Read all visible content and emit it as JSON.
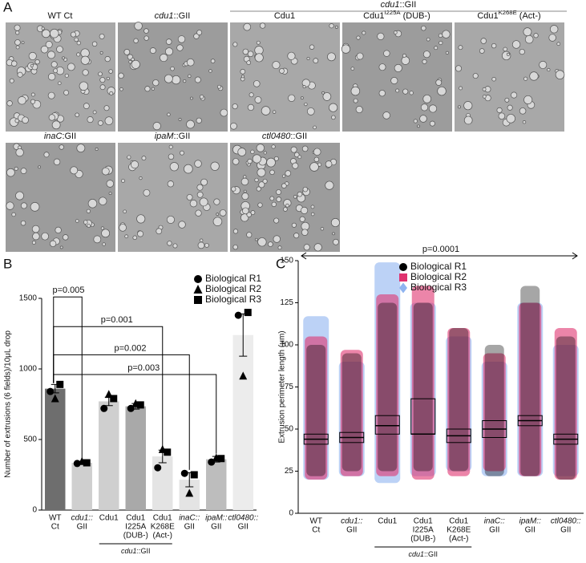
{
  "panel_a": {
    "letter": "A",
    "group_label": [
      {
        "text": "cdu1",
        "italic": true
      },
      {
        "text": "::GII"
      }
    ],
    "labels": [
      [
        {
          "text": "WT Ct"
        }
      ],
      [
        {
          "text": "cdu1",
          "italic": true
        },
        {
          "text": "::GII"
        }
      ],
      [
        {
          "text": "Cdu1"
        }
      ],
      [
        {
          "text": "Cdu1"
        },
        {
          "text": "I225A",
          "sup": true
        },
        {
          "text": " (DUB-)"
        }
      ],
      [
        {
          "text": "Cdu1"
        },
        {
          "text": "K268E",
          "sup": true
        },
        {
          "text": " (Act-)"
        }
      ],
      [
        {
          "text": "inaC",
          "italic": true
        },
        {
          "text": ":GII"
        }
      ],
      [
        {
          "text": "ipaM",
          "italic": true
        },
        {
          "text": "::GII"
        }
      ],
      [
        {
          "text": "ctl0480",
          "italic": true
        },
        {
          "text": "::GII"
        }
      ]
    ]
  },
  "chart_data": [
    {
      "type": "bar",
      "panel": "B",
      "ylabel": "Number of extrusions (6 fields)/10μL drop",
      "categories": [
        [
          "WT",
          "Ct"
        ],
        [
          "cdu1::",
          "GII"
        ],
        [
          "Cdu1"
        ],
        [
          "Cdu1",
          "I225A",
          "(DUB-)"
        ],
        [
          "Cdu1",
          "K268E",
          "(Act-)"
        ],
        [
          "inaC::",
          "GII"
        ],
        [
          "ipaM::",
          "GII"
        ],
        [
          "ctl0480::",
          "GII"
        ]
      ],
      "values": [
        860,
        335,
        770,
        735,
        380,
        215,
        360,
        1240
      ],
      "errors": [
        30,
        10,
        30,
        20,
        45,
        50,
        20,
        150
      ],
      "colors": [
        "#6e6e6e",
        "#cfcfcf",
        "#cfcfcf",
        "#a9a9a9",
        "#e4e4e4",
        "#e4e4e4",
        "#bdbdbd",
        "#ececec"
      ],
      "series": [
        {
          "name": "Biological R1",
          "marker": "circle",
          "color": "#000000",
          "values": [
            840,
            330,
            720,
            720,
            300,
            260,
            340,
            1380
          ]
        },
        {
          "name": "Biological R2",
          "marker": "triangle",
          "color": "#000000",
          "values": [
            790,
            345,
            820,
            755,
            430,
            120,
            370,
            950
          ]
        },
        {
          "name": "Biological R3",
          "marker": "square",
          "color": "#000000",
          "values": [
            890,
            335,
            790,
            745,
            410,
            250,
            365,
            1400
          ]
        }
      ],
      "ylim": [
        0,
        1500
      ],
      "yticks": [
        0,
        500,
        1000,
        1500
      ],
      "annotations": [
        "p=0.005",
        "p=0.001",
        "p=0.002",
        "p=0.003"
      ],
      "group_label": [
        {
          "text": "cdu1",
          "italic": true
        },
        {
          "text": "::GII"
        }
      ]
    },
    {
      "type": "strip",
      "panel": "C",
      "ylabel": "Extrusion perimeter length (μm)",
      "categories": [
        [
          "WT",
          "Ct"
        ],
        [
          "cdu1::",
          "GII"
        ],
        [
          "Cdu1"
        ],
        [
          "Cdu1",
          "I225A",
          "(DUB-)"
        ],
        [
          "Cdu1",
          "K268E",
          "(Act-)"
        ],
        [
          "inaC::",
          "GII"
        ],
        [
          "ipaM::",
          "GII"
        ],
        [
          "ctl0480::",
          "GII"
        ]
      ],
      "series": [
        {
          "name": "Biological R1",
          "marker": "circle",
          "color": "#000000",
          "ranges": [
            [
              22,
              100
            ],
            [
              25,
              95
            ],
            [
              25,
              125
            ],
            [
              25,
              125
            ],
            [
              25,
              110
            ],
            [
              22,
              100
            ],
            [
              22,
              135
            ],
            [
              20,
              105
            ]
          ]
        },
        {
          "name": "Biological R2",
          "marker": "square",
          "color": "#e0336f",
          "ranges": [
            [
              20,
              105
            ],
            [
              22,
              97
            ],
            [
              22,
              130
            ],
            [
              20,
              135
            ],
            [
              22,
              110
            ],
            [
              25,
              95
            ],
            [
              22,
              125
            ],
            [
              20,
              110
            ]
          ]
        },
        {
          "name": "Biological R3",
          "marker": "diamond",
          "color": "#8fb4f0",
          "ranges": [
            [
              20,
              117
            ],
            [
              22,
              90
            ],
            [
              18,
              149
            ],
            [
              22,
              125
            ],
            [
              25,
              105
            ],
            [
              22,
              90
            ],
            [
              22,
              125
            ],
            [
              22,
              100
            ]
          ]
        }
      ],
      "q1": [
        41,
        42,
        47,
        47,
        42,
        45,
        52,
        41
      ],
      "medians": [
        44,
        45,
        52,
        47,
        46,
        50,
        55,
        44
      ],
      "q3": [
        47,
        48,
        58,
        68,
        50,
        55,
        58,
        47
      ],
      "ylim": [
        0,
        150
      ],
      "yticks": [
        0,
        25,
        50,
        75,
        100,
        125,
        150
      ],
      "annotation": "p=0.0001",
      "group_label": [
        {
          "text": "cdu1",
          "italic": true
        },
        {
          "text": "::GII"
        }
      ]
    }
  ]
}
